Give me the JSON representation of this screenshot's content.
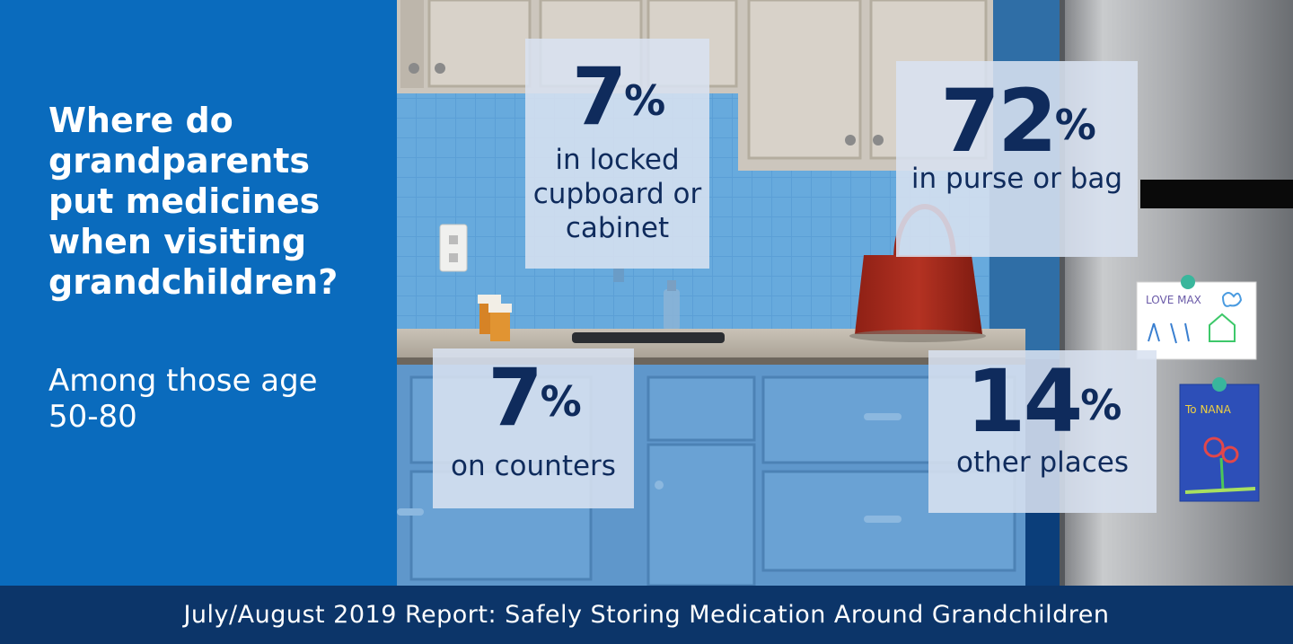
{
  "headline": "Where do grandparents put medicines when visiting grandchildren?",
  "subhead": "Among those age 50-80",
  "stats": [
    {
      "name": "cupboard",
      "value": "7",
      "unit": "%",
      "label": "in locked cupboard or cabinet"
    },
    {
      "name": "purse",
      "value": "72",
      "unit": "%",
      "label": "in purse or bag"
    },
    {
      "name": "counters",
      "value": "7",
      "unit": "%",
      "label": "on counters"
    },
    {
      "name": "other",
      "value": "14",
      "unit": "%",
      "label": "other places"
    }
  ],
  "fridge_notes": [
    "LOVE MAX",
    "To NANA"
  ],
  "footer": "July/August 2019 Report: Safely Storing Medication Around Grandchildren",
  "colors": {
    "left_panel": "#0a6bbd",
    "footer": "#0c3569",
    "stat_text": "#0f2b5c",
    "card_bg": "#d8e1f0",
    "purse": "#a8281c"
  }
}
